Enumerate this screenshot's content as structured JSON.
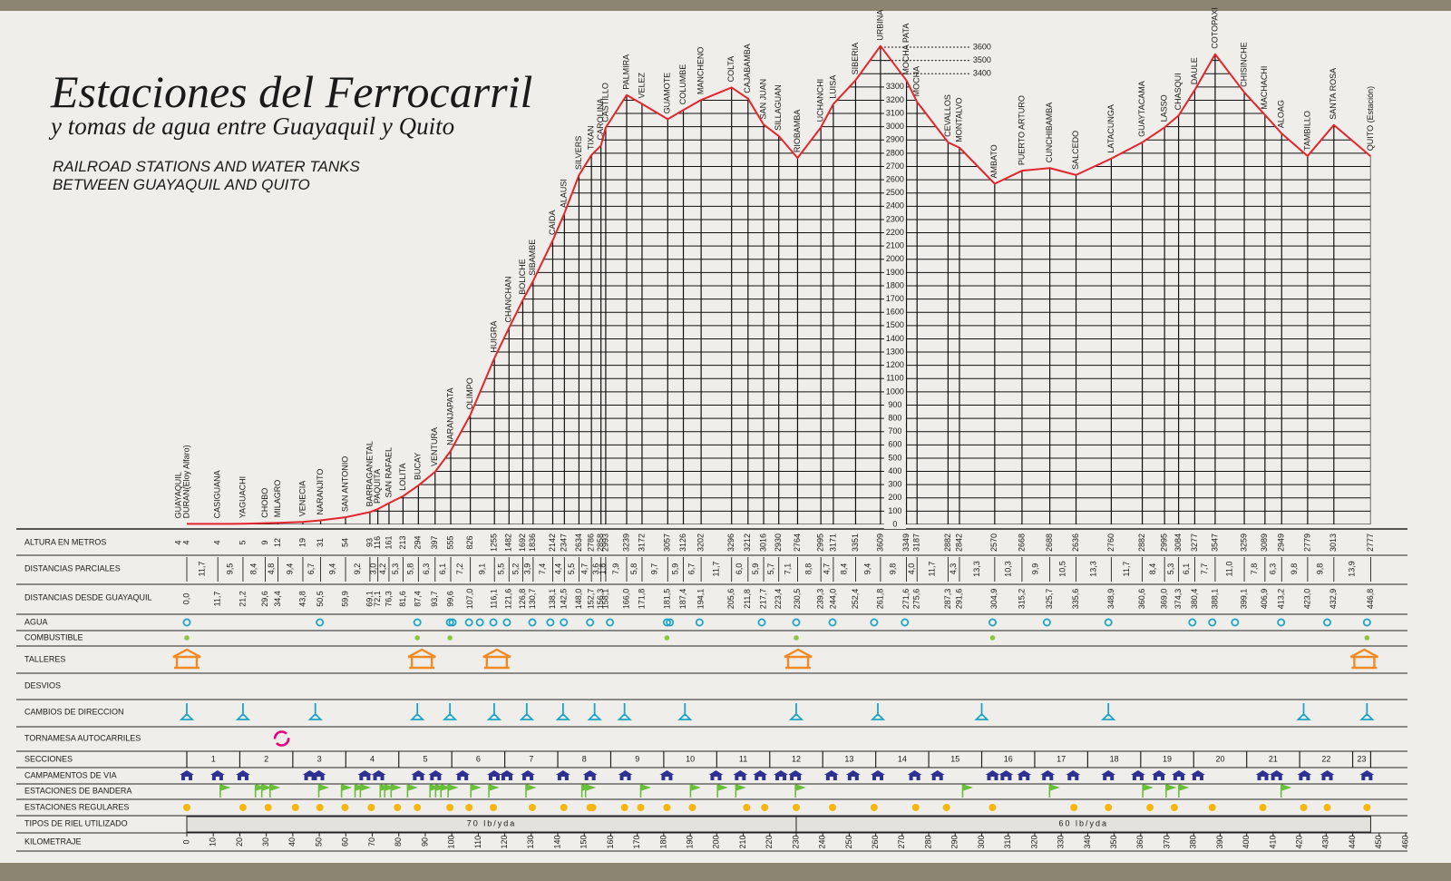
{
  "chart_data": {
    "type": "line",
    "title": "Estaciones del Ferrocarril",
    "subtitle": "y tomas de agua entre Guayaquil y Quito",
    "subtitle_en": [
      "RAILROAD STATIONS AND WATER TANKS",
      "BETWEEN GUAYAQUIL AND QUITO"
    ],
    "categories": [
      "GUAYAQUIL",
      "DURAN(Eloy Alfaro)",
      "CASIGUANA",
      "YAGUACHI",
      "CHOBO",
      "MILAGRO",
      "VENECIA",
      "NARANJITO",
      "SAN ANTONIO",
      "BARRAGANETAL",
      "PAQUITA",
      "SAN RAFAEL",
      "LOLITA",
      "BUCAY",
      "VENTURA",
      "NARANJAPATA",
      "OLIMPO",
      "HUIGRA",
      "CHANCHAN",
      "BOLICHE",
      "SIBAMBE",
      "CAIDA",
      "ALAUSI",
      "SILVERS",
      "TIXAN",
      "CAROLINA",
      "CASTILLO",
      "PALMIRA",
      "VELEZ",
      "GUAMOTE",
      "COLUMBE",
      "MANCHENO",
      "COLTA",
      "CAJABAMBA",
      "SAN JUAN",
      "SILLAGUAN",
      "RIOBAMBA",
      "UCHANCHI",
      "LUISA",
      "SIBERIA",
      "URBINA",
      "MOCHA PATA",
      "MOCHA",
      "CEVALLOS",
      "MONTALVO",
      "AMBATO",
      "PUERTO ARTURO",
      "CUNCHIBAMBA",
      "SALCEDO",
      "LATACUNGA",
      "GUAYTACAMA",
      "LASSO",
      "CHASQUI",
      "DAULE",
      "COTOPAXI",
      "CHISINCHE",
      "MACHACHI",
      "ALOAG",
      "TAMBILLO",
      "SANTA ROSA",
      "QUITO (Estación)"
    ],
    "x": [
      0,
      0,
      11.7,
      21.2,
      29.6,
      34.4,
      43.8,
      50.5,
      59.9,
      69.1,
      72.1,
      76.3,
      81.6,
      87.4,
      93.7,
      99.6,
      107.0,
      116.1,
      121.6,
      126.8,
      130.7,
      138.1,
      142.5,
      148.0,
      152.7,
      156.3,
      158.1,
      166.0,
      171.8,
      181.5,
      187.4,
      194.1,
      205.6,
      211.8,
      217.7,
      223.4,
      230.5,
      239.3,
      244.0,
      252.4,
      261.8,
      271.6,
      275.6,
      287.3,
      291.6,
      304.9,
      315.2,
      325.7,
      335.6,
      348.9,
      360.6,
      369.0,
      374.3,
      380.4,
      388.1,
      399.1,
      406.9,
      413.2,
      423.0,
      432.9,
      446.8
    ],
    "x_labels": [
      "0,0",
      null,
      "11,7",
      "21,2",
      "29,6",
      "34,4",
      "43,8",
      "50,5",
      "59,9",
      "69,1",
      "72,1",
      "76,3",
      "81,6",
      "87,4",
      "93,7",
      "99,6",
      "107,0",
      "116,1",
      "121,6",
      "126,8",
      "130,7",
      "138,1",
      "142,5",
      "148,0",
      "152,7",
      "156,3",
      "158,1",
      "166,0",
      "171,8",
      "181,5",
      "187,4",
      "194,1",
      "205,6",
      "211,8",
      "217,7",
      "223,4",
      "230,5",
      "239,3",
      "244,0",
      "252,4",
      "261,8",
      "271,6",
      "275,6",
      "287,3",
      "291,6",
      "304,9",
      "315,2",
      "325,7",
      "335,6",
      "348,9",
      "360,6",
      "369,0",
      "374,3",
      "380,4",
      "388,1",
      "399,1",
      "406,9",
      "413,2",
      "423,0",
      "432,9",
      "446,8"
    ],
    "partial": [
      null,
      null,
      11.7,
      9.5,
      8.4,
      4.8,
      9.4,
      6.7,
      9.4,
      9.2,
      3.0,
      4.2,
      5.3,
      5.8,
      6.3,
      6.1,
      7.2,
      9.1,
      5.5,
      5.2,
      3.9,
      7.4,
      4.4,
      5.5,
      4.7,
      3.6,
      1.8,
      7.9,
      5.8,
      9.7,
      5.9,
      6.7,
      11.7,
      6.0,
      5.9,
      5.7,
      7.1,
      8.8,
      4.7,
      8.4,
      9.4,
      9.8,
      4.0,
      11.7,
      4.3,
      13.3,
      10.3,
      9.9,
      10.5,
      13.3,
      11.7,
      8.4,
      5.3,
      6.1,
      7.7,
      11.0,
      7.8,
      6.3,
      9.8,
      9.8,
      13.9
    ],
    "partial_labels": [
      null,
      null,
      "11,7",
      "9,5",
      "8,4",
      "4,8",
      "9,4",
      "6,7",
      "9,4",
      "9,2",
      "3,0",
      "4,2",
      "5,3",
      "5,8",
      "6,3",
      "6,1",
      "7,2",
      "9,1",
      "5,5",
      "5,2",
      "3,9",
      "7,4",
      "4,4",
      "5,5",
      "4,7",
      "3,6",
      "1,8",
      "7,9",
      "5,8",
      "9,7",
      "5,9",
      "6,7",
      "11,7",
      "6,0",
      "5,9",
      "5,7",
      "7,1",
      "8,8",
      "4,7",
      "8,4",
      "9,4",
      "9,8",
      "4,0",
      "11,7",
      "4,3",
      "13,3",
      "10,3",
      "9,9",
      "10,5",
      "13,3",
      "11,7",
      "8,4",
      "5,3",
      "6,1",
      "7,7",
      "11,0",
      "7,8",
      "6,3",
      "9,8",
      "9,8",
      "13,9"
    ],
    "series": [
      {
        "color": "#e3262d",
        "values": [
          4,
          4,
          4,
          5,
          9,
          12,
          19,
          31,
          54,
          93,
          116,
          161,
          213,
          294,
          397,
          555,
          826,
          1255,
          1482,
          1692,
          1836,
          2142,
          2347,
          2634,
          2786,
          2858,
          2993,
          3239,
          3172,
          3057,
          3126,
          3202,
          3296,
          3212,
          3016,
          2930,
          2764,
          2995,
          3171,
          3351,
          3609,
          3349,
          3187,
          2882,
          2842,
          2570,
          2668,
          2688,
          2636,
          2760,
          2882,
          2995,
          3084,
          3277,
          3547,
          3259,
          3089,
          2949,
          2779,
          3013,
          2777
        ]
      }
    ],
    "xlim": [
      0,
      460
    ],
    "xticks": [
      0,
      10,
      20,
      30,
      40,
      50,
      60,
      70,
      80,
      90,
      100,
      110,
      120,
      130,
      140,
      150,
      160,
      170,
      180,
      190,
      200,
      210,
      220,
      230,
      240,
      250,
      260,
      270,
      280,
      290,
      300,
      310,
      320,
      330,
      340,
      350,
      360,
      370,
      380,
      390,
      400,
      410,
      420,
      430,
      440,
      450,
      460
    ],
    "ylim": [
      0,
      3600
    ],
    "yticks": [
      0,
      100,
      200,
      300,
      400,
      500,
      600,
      700,
      800,
      900,
      1000,
      1100,
      1200,
      1300,
      1400,
      1500,
      1600,
      1700,
      1800,
      1900,
      2000,
      2100,
      2200,
      2300,
      2400,
      2500,
      2600,
      2700,
      2800,
      2900,
      3000,
      3100,
      3200,
      3300,
      3400,
      3500,
      3600
    ],
    "grid": true,
    "rows": [
      "ALTURA EN METROS",
      "DISTANCIAS PARCIALES",
      "DISTANCIAS DESDE GUAYAQUIL",
      "AGUA",
      "COMBUSTIBLE",
      "TALLERES",
      "DESVIOS",
      "CAMBIOS DE DIRECCION",
      "TORNAMESA AUTOCARRILES",
      "SECCIONES",
      "CAMPAMENTOS DE VIA",
      "ESTACIONES DE BANDERA",
      "ESTACIONES REGULARES",
      "TIPOS DE RIEL UTILIZADO",
      "KILOMETRAJE"
    ],
    "markers": {
      "agua": [
        0,
        50.2,
        87,
        99.3,
        100.3,
        106.5,
        110.6,
        115.7,
        120.8,
        130.4,
        137.2,
        142.3,
        152.2,
        159.7,
        181.2,
        182.3,
        193.5,
        217,
        230,
        243.7,
        259.4,
        271,
        304.1,
        324.6,
        347.8,
        379.5,
        387,
        395.6,
        413,
        430.4,
        445.4
      ],
      "combustible": [
        0,
        87,
        99.3,
        181.2,
        230,
        304.1,
        445.4
      ],
      "talleres": [
        0,
        88.7,
        117,
        230.7,
        444.4
      ],
      "cambios": [
        0,
        21.2,
        48.5,
        87,
        99.3,
        116,
        128.3,
        142,
        153.9,
        165.2,
        188,
        230,
        260.8,
        300,
        347.8,
        421.5,
        445.4
      ],
      "tornamesa": [
        35.8
      ],
      "campamentos": [
        0,
        11.6,
        21.2,
        46.4,
        49.8,
        67.2,
        72.4,
        87.4,
        93.9,
        104.1,
        116,
        120.8,
        128.7,
        142,
        152.2,
        165.5,
        181.2,
        199.7,
        208.9,
        216.4,
        224.2,
        229.7,
        243.3,
        251.5,
        260.8,
        274.7,
        283.3,
        304.1,
        309.2,
        316,
        324.9,
        334.5,
        347.8,
        359,
        366.9,
        374.4,
        381.6,
        406.1,
        411.3,
        421.8,
        430.4,
        445.4
      ],
      "bandera": [
        12.6,
        25.9,
        28.3,
        31.4,
        49.8,
        58.4,
        63.5,
        65.5,
        73,
        74.7,
        77.1,
        83.3,
        91.8,
        93.9,
        95.9,
        98.6,
        107.2,
        114,
        128,
        149.1,
        150.5,
        171.3,
        190.1,
        200.3,
        207.2,
        229.7,
        292.8,
        325.6,
        360.8,
        369.6,
        374.4,
        413
      ],
      "regulares": [
        0,
        21.2,
        30.7,
        41,
        50.2,
        59.7,
        69.6,
        79.5,
        87,
        99.3,
        106.5,
        115.7,
        130.4,
        142.3,
        152.2,
        153.2,
        165.2,
        171.3,
        181.2,
        190.8,
        211.3,
        218.1,
        230,
        243.7,
        259.4,
        275.1,
        286.7,
        304.1,
        334.8,
        347.8,
        363.5,
        372.7,
        387,
        406.1,
        421.5,
        430.4,
        445.4
      ]
    },
    "sections": [
      1,
      2,
      3,
      4,
      5,
      6,
      7,
      8,
      9,
      10,
      11,
      12,
      13,
      14,
      15,
      16,
      17,
      18,
      19,
      20,
      21,
      22,
      23
    ],
    "rails": [
      {
        "label": "70  lb/yda",
        "from": 0,
        "to": 230
      },
      {
        "label": "60  lb/yda",
        "from": 230,
        "to": 446.8
      }
    ]
  }
}
